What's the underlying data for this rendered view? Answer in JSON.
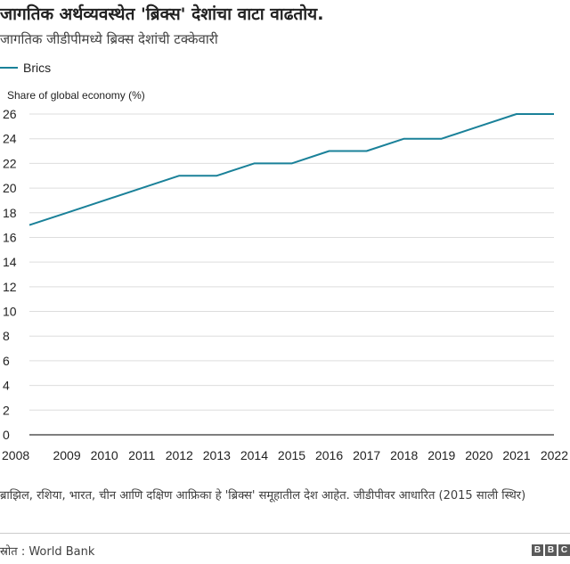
{
  "header": {
    "title": "जागतिक अर्थव्यवस्थेत 'ब्रिक्स' देशांचा वाटा वाढतोय.",
    "subtitle": "जागतिक जीडीपीमध्ये ब्रिक्स देशांची टक्केवारी"
  },
  "chart_data": {
    "type": "line",
    "x": [
      "2008",
      "2009",
      "2010",
      "2011",
      "2012",
      "2013",
      "2014",
      "2015",
      "2016",
      "2017",
      "2018",
      "2019",
      "2020",
      "2021",
      "2022"
    ],
    "series": [
      {
        "name": "Brics",
        "color": "#1a8199",
        "values": [
          17,
          18,
          19,
          20,
          21,
          21,
          22,
          22,
          23,
          23,
          24,
          24,
          25,
          26,
          26
        ]
      }
    ],
    "ylabel": "Share of global economy (%)",
    "ylim": [
      0,
      26
    ],
    "yticks": [
      0,
      2,
      4,
      6,
      8,
      10,
      12,
      14,
      16,
      18,
      20,
      22,
      24,
      26
    ],
    "grid": true,
    "legend_position": "top-left"
  },
  "footer": {
    "note": "ब्राझिल, रशिया, भारत, चीन आणि दक्षिण आफ्रिका हे 'ब्रिक्स' समूहातील देश आहेत. जीडीपीवर आधारित (2015 साली स्थिर)",
    "source": "स्रोत : World Bank",
    "logo_letters": [
      "B",
      "B",
      "C"
    ]
  }
}
